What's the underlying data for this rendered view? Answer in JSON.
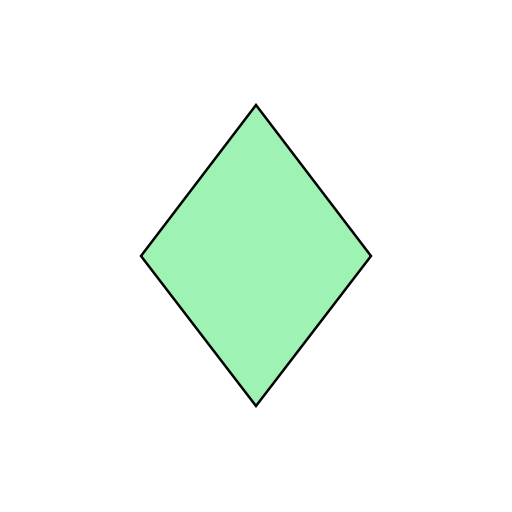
{
  "canvas": {
    "background": "#ffffff"
  },
  "shape": {
    "type": "rhombus",
    "fill": "#9ef2b4",
    "stroke": "#000000"
  }
}
